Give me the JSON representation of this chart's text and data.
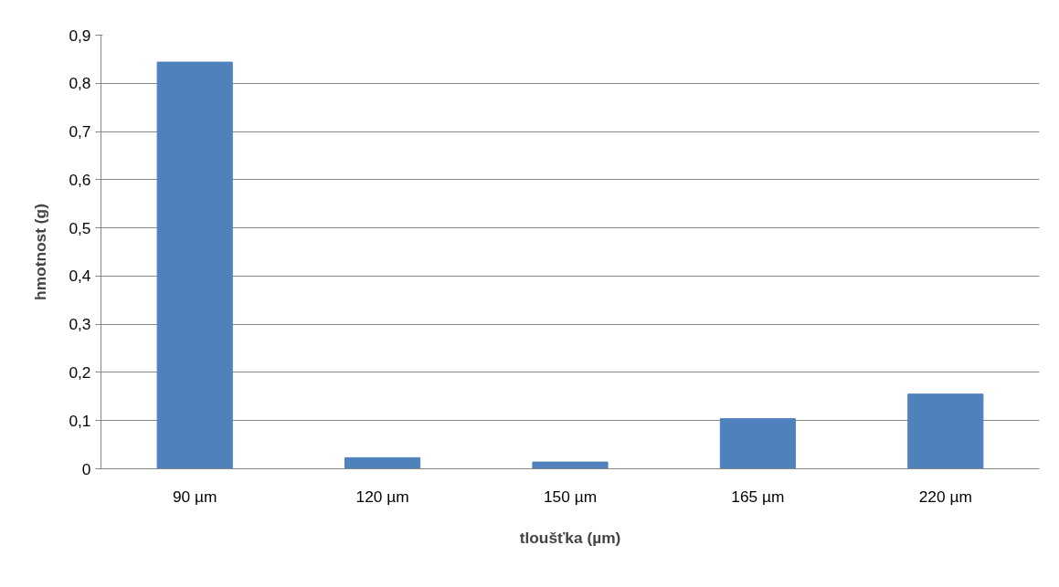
{
  "chart_data": {
    "type": "bar",
    "xlabel": "tloušťka (µm)",
    "ylabel": "hmotnost (g)",
    "categories": [
      "90 µm",
      "120 µm",
      "150 µm",
      "165 µm",
      "220 µm"
    ],
    "values": [
      0.844,
      0.023,
      0.014,
      0.104,
      0.155
    ],
    "color": "#4f81bd",
    "ylim": [
      0,
      0.9
    ],
    "yticks": [
      {
        "value": 0,
        "label": "0"
      },
      {
        "value": 0.1,
        "label": "0,1"
      },
      {
        "value": 0.2,
        "label": "0,2"
      },
      {
        "value": 0.3,
        "label": "0,3"
      },
      {
        "value": 0.4,
        "label": "0,4"
      },
      {
        "value": 0.5,
        "label": "0,5"
      },
      {
        "value": 0.6,
        "label": "0,6"
      },
      {
        "value": 0.7,
        "label": "0,7"
      },
      {
        "value": 0.8,
        "label": "0,8"
      },
      {
        "value": 0.9,
        "label": "0,9"
      }
    ],
    "grid": "y"
  }
}
